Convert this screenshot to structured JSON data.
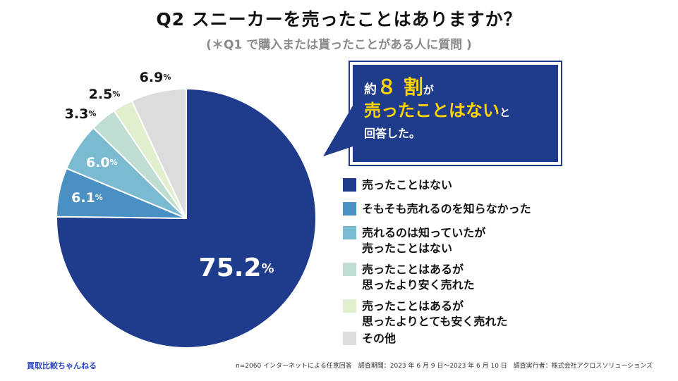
{
  "header": {
    "title": "Q2  スニーカーを売ったことはありますか？",
    "subtitle": "(＊Q1 で購入または貰ったことがある人に質問 )"
  },
  "chart_data": {
    "type": "pie",
    "start_angle_deg": 0,
    "direction": "clockwise",
    "slices": [
      {
        "label": "売ったことはない",
        "value": 75.2,
        "display": "75.2",
        "color": "#1e3b8c",
        "label_color": "#ffffff"
      },
      {
        "label": "そもそも売れるのを知らなかった",
        "value": 6.1,
        "display": "6.1",
        "color": "#4a90c2",
        "label_color": "#ffffff"
      },
      {
        "label": "売れるのは知っていたが\n売ったことはない",
        "value": 6.0,
        "display": "6.0",
        "color": "#7bbbd2",
        "label_color": "#ffffff"
      },
      {
        "label": "売ったことはあるが\n思ったより安く売れた",
        "value": 3.3,
        "display": "3.3",
        "color": "#bfddd0",
        "label_color": "#111111"
      },
      {
        "label": "売ったことはあるが\n思ったよりとても安く売れた",
        "value": 2.5,
        "display": "2.5",
        "color": "#e2efcf",
        "label_color": "#111111"
      },
      {
        "label": "その他",
        "value": 6.9,
        "display": "6.9",
        "color": "#dcdcdc",
        "label_color": "#111111"
      }
    ],
    "unit": "%"
  },
  "callout": {
    "p1": "約",
    "big": "８ 割",
    "p2": "が",
    "hl": "売ったことはない",
    "p3": "と",
    "line3": "回答した。"
  },
  "footer": {
    "left": "買取比較ちゃんねる",
    "right": "n=2060 インターネットによる任意回答　調査期間：2023 年 6 月 9 日〜2023 年 6 月 10 日　調査実行者：株式会社アクロスソリューションズ"
  }
}
